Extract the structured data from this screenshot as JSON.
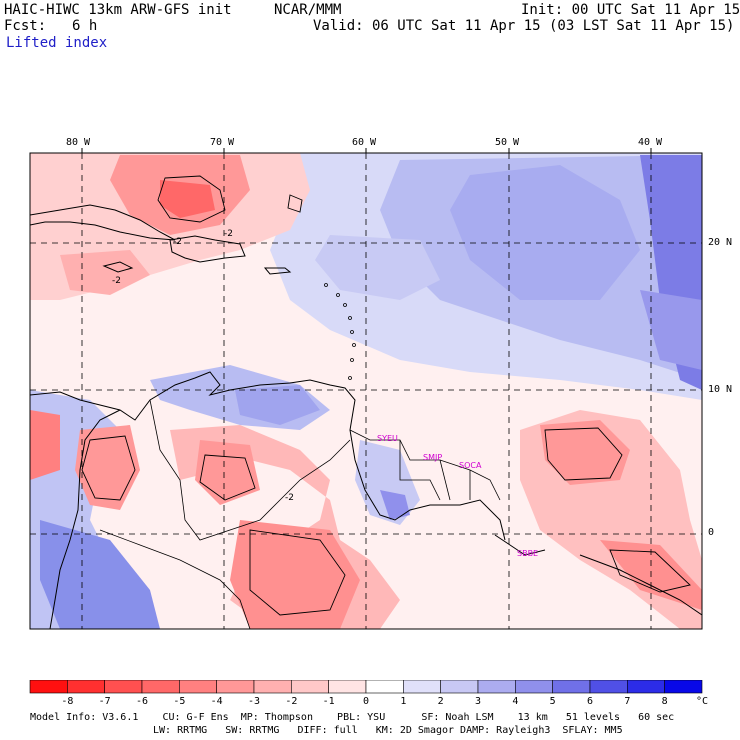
{
  "header": {
    "model_title": "HAIC-HIWC 13km ARW-GFS init",
    "org": "NCAR/MMM",
    "init": "Init: 00 UTC Sat 11 Apr 15",
    "fcst_label": "Fcst:",
    "fcst_value": "6 h",
    "valid": "Valid: 06 UTC Sat 11 Apr 15 (03 LST Sat 11 Apr 15)",
    "field": "Lifted index"
  },
  "map": {
    "lon_labels": [
      "80 W",
      "70 W",
      "60 W",
      "50 W",
      "40 W"
    ],
    "lat_labels": [
      "20 N",
      "10 N",
      "0"
    ],
    "stations": [
      "SYEU",
      "SMJP",
      "SOCA",
      "SBBE"
    ],
    "contour_labels": [
      "-2",
      "-2",
      "-2",
      "-2"
    ],
    "colors": {
      "neg_strong": "#ff4040",
      "neg_mid": "#ff9090",
      "neg_weak": "#ffd0d0",
      "neutral": "#fff0f0",
      "pos_weak": "#d8daf8",
      "pos_mid": "#a8acf0",
      "pos_strong": "#6868e0"
    }
  },
  "colorbar": {
    "ticks": [
      "-8",
      "-7",
      "-6",
      "-5",
      "-4",
      "-3",
      "-2",
      "-1",
      "0",
      "1",
      "2",
      "3",
      "4",
      "5",
      "6",
      "7",
      "8"
    ],
    "unit": "°C",
    "colors": [
      "#ff1010",
      "#ff3030",
      "#ff5050",
      "#ff6868",
      "#ff8080",
      "#ff9898",
      "#ffb0b0",
      "#ffc8c8",
      "#ffe4e4",
      "#ffffff",
      "#e0e0fa",
      "#c8c8f4",
      "#acacf0",
      "#9090ec",
      "#7070e8",
      "#5050e6",
      "#2c2ce8",
      "#0808e8"
    ]
  },
  "footer": {
    "line1": "Model Info: V3.6.1    CU: G-F Ens  MP: Thompson    PBL: YSU      SF: Noah LSM    13 km   51 levels   60 sec",
    "line2": "LW: RRTMG   SW: RRTMG   DIFF: full   KM: 2D Smagor DAMP: Rayleigh3  SFLAY: MM5"
  }
}
